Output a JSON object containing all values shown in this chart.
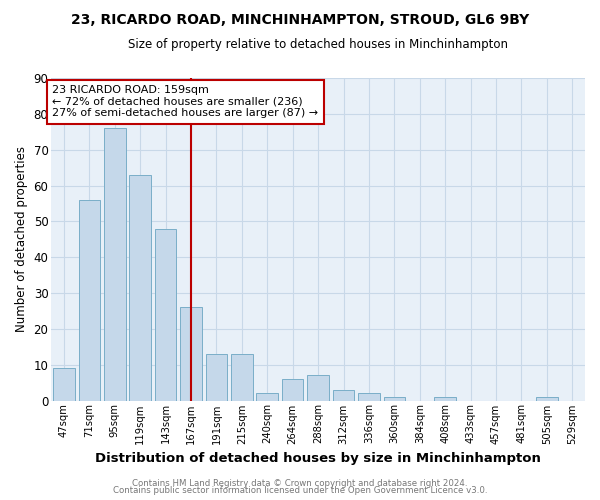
{
  "title": "23, RICARDO ROAD, MINCHINHAMPTON, STROUD, GL6 9BY",
  "subtitle": "Size of property relative to detached houses in Minchinhampton",
  "xlabel": "Distribution of detached houses by size in Minchinhampton",
  "ylabel": "Number of detached properties",
  "bar_labels": [
    "47sqm",
    "71sqm",
    "95sqm",
    "119sqm",
    "143sqm",
    "167sqm",
    "191sqm",
    "215sqm",
    "240sqm",
    "264sqm",
    "288sqm",
    "312sqm",
    "336sqm",
    "360sqm",
    "384sqm",
    "408sqm",
    "433sqm",
    "457sqm",
    "481sqm",
    "505sqm",
    "529sqm"
  ],
  "bar_heights": [
    9,
    56,
    76,
    63,
    48,
    26,
    13,
    13,
    2,
    6,
    7,
    3,
    2,
    1,
    0,
    1,
    0,
    0,
    0,
    1,
    0
  ],
  "bar_color": "#c5d8ea",
  "bar_edge_color": "#7aaec8",
  "grid_color": "#c8d8e8",
  "plot_bg_color": "#e8f0f8",
  "fig_bg_color": "#ffffff",
  "vline_x_index": 5,
  "vline_color": "#bb0000",
  "annotation_line1": "23 RICARDO ROAD: 159sqm",
  "annotation_line2": "← 72% of detached houses are smaller (236)",
  "annotation_line3": "27% of semi-detached houses are larger (87) →",
  "annotation_box_color": "#ffffff",
  "annotation_box_edge_color": "#bb0000",
  "ylim": [
    0,
    90
  ],
  "yticks": [
    0,
    10,
    20,
    30,
    40,
    50,
    60,
    70,
    80,
    90
  ],
  "footer1": "Contains HM Land Registry data © Crown copyright and database right 2024.",
  "footer2": "Contains public sector information licensed under the Open Government Licence v3.0."
}
